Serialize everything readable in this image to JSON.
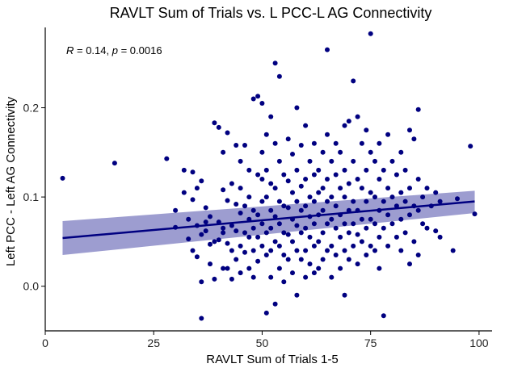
{
  "chart_data": {
    "type": "scatter",
    "title": "RAVLT Sum of Trials vs. L PCC-L AG Connectivity",
    "xlabel": "RAVLT Sum of Trials 1-5",
    "ylabel": "Left PCC - Left AG Connectivity",
    "xlim": [
      0,
      103
    ],
    "ylim": [
      -0.05,
      0.29
    ],
    "x_ticks": [
      0,
      25,
      50,
      75,
      100
    ],
    "x_tick_labels": [
      "0",
      "25",
      "50",
      "75",
      "100"
    ],
    "y_ticks": [
      0.0,
      0.1,
      0.2
    ],
    "y_tick_labels": [
      "0.0",
      "0.1",
      "0.2"
    ],
    "grid": false,
    "annotation": {
      "r_label": "R",
      "r_text": " = 0.14, ",
      "p_label": "p",
      "p_text": " = 0.0016"
    },
    "regression": {
      "x": [
        4,
        99
      ],
      "y": [
        0.054,
        0.095
      ],
      "ci_lower": [
        0.035,
        0.082
      ],
      "ci_upper": [
        0.073,
        0.107
      ]
    },
    "point_color": "#000080",
    "line_color": "#000080",
    "ci_color": "#8c8cc8",
    "points": [
      [
        4,
        0.121
      ],
      [
        16,
        0.138
      ],
      [
        28,
        0.143
      ],
      [
        30,
        0.085
      ],
      [
        30,
        0.066
      ],
      [
        32,
        0.13
      ],
      [
        32,
        0.105
      ],
      [
        33,
        0.075
      ],
      [
        33,
        0.053
      ],
      [
        34,
        0.128
      ],
      [
        34,
        0.097
      ],
      [
        34,
        0.04
      ],
      [
        35,
        0.11
      ],
      [
        35,
        0.068
      ],
      [
        35,
        0.033
      ],
      [
        36,
        0.118
      ],
      [
        36,
        0.058
      ],
      [
        36,
        0.005
      ],
      [
        36,
        -0.036
      ],
      [
        37,
        0.088
      ],
      [
        37,
        0.072
      ],
      [
        37,
        0.062
      ],
      [
        38,
        0.078
      ],
      [
        38,
        0.047
      ],
      [
        38,
        0.025
      ],
      [
        39,
        0.183
      ],
      [
        39,
        0.05
      ],
      [
        39,
        0.008
      ],
      [
        40,
        0.178
      ],
      [
        40,
        0.072
      ],
      [
        40,
        0.052
      ],
      [
        41,
        0.15
      ],
      [
        41,
        0.108
      ],
      [
        41,
        0.065
      ],
      [
        41,
        0.06
      ],
      [
        41,
        0.02
      ],
      [
        42,
        0.172
      ],
      [
        42,
        0.096
      ],
      [
        42,
        0.048
      ],
      [
        42,
        0.02
      ],
      [
        43,
        0.115
      ],
      [
        43,
        0.068
      ],
      [
        43,
        0.04
      ],
      [
        43,
        0.008
      ],
      [
        44,
        0.158
      ],
      [
        44,
        0.092
      ],
      [
        44,
        0.062
      ],
      [
        44,
        0.03
      ],
      [
        45,
        0.14
      ],
      [
        45,
        0.11
      ],
      [
        45,
        0.082
      ],
      [
        45,
        0.045
      ],
      [
        45,
        0.015
      ],
      [
        46,
        0.158
      ],
      [
        46,
        0.09
      ],
      [
        46,
        0.06
      ],
      [
        46,
        0.038
      ],
      [
        47,
        0.13
      ],
      [
        47,
        0.1
      ],
      [
        47,
        0.075
      ],
      [
        47,
        0.055
      ],
      [
        47,
        0.02
      ],
      [
        48,
        0.21
      ],
      [
        48,
        0.085
      ],
      [
        48,
        0.065
      ],
      [
        48,
        0.04
      ],
      [
        48,
        0.01
      ],
      [
        49,
        0.213
      ],
      [
        49,
        0.125
      ],
      [
        49,
        0.08
      ],
      [
        49,
        0.055
      ],
      [
        49,
        0.028
      ],
      [
        50,
        0.205
      ],
      [
        50,
        0.15
      ],
      [
        50,
        0.12
      ],
      [
        50,
        0.095
      ],
      [
        50,
        0.07
      ],
      [
        50,
        0.045
      ],
      [
        51,
        0.17
      ],
      [
        51,
        0.13
      ],
      [
        51,
        0.1
      ],
      [
        51,
        0.06
      ],
      [
        51,
        0.035
      ],
      [
        51,
        -0.03
      ],
      [
        52,
        0.19
      ],
      [
        52,
        0.115
      ],
      [
        52,
        0.085
      ],
      [
        52,
        0.065
      ],
      [
        52,
        0.04
      ],
      [
        52,
        0.01
      ],
      [
        53,
        0.25
      ],
      [
        53,
        0.16
      ],
      [
        53,
        0.11
      ],
      [
        53,
        0.078
      ],
      [
        53,
        0.05
      ],
      [
        53,
        -0.02
      ],
      [
        54,
        0.235
      ],
      [
        54,
        0.14
      ],
      [
        54,
        0.095
      ],
      [
        54,
        0.07
      ],
      [
        54,
        0.045
      ],
      [
        54,
        0.02
      ],
      [
        55,
        0.125
      ],
      [
        55,
        0.09
      ],
      [
        55,
        0.06
      ],
      [
        55,
        0.035
      ],
      [
        55,
        0.005
      ],
      [
        56,
        0.165
      ],
      [
        56,
        0.118
      ],
      [
        56,
        0.088
      ],
      [
        56,
        0.058
      ],
      [
        56,
        0.03
      ],
      [
        57,
        0.148
      ],
      [
        57,
        0.105
      ],
      [
        57,
        0.075
      ],
      [
        57,
        0.05
      ],
      [
        57,
        0.015
      ],
      [
        58,
        0.2
      ],
      [
        58,
        0.13
      ],
      [
        58,
        0.095
      ],
      [
        58,
        0.068
      ],
      [
        58,
        0.04
      ],
      [
        58,
        -0.01
      ],
      [
        59,
        0.158
      ],
      [
        59,
        0.112
      ],
      [
        59,
        0.085
      ],
      [
        59,
        0.06
      ],
      [
        59,
        0.03
      ],
      [
        60,
        0.18
      ],
      [
        60,
        0.12
      ],
      [
        60,
        0.09
      ],
      [
        60,
        0.065
      ],
      [
        60,
        0.04
      ],
      [
        60,
        0.01
      ],
      [
        61,
        0.14
      ],
      [
        61,
        0.1
      ],
      [
        61,
        0.078
      ],
      [
        61,
        0.055
      ],
      [
        61,
        0.025
      ],
      [
        62,
        0.16
      ],
      [
        62,
        0.125
      ],
      [
        62,
        0.095
      ],
      [
        62,
        0.07
      ],
      [
        62,
        0.045
      ],
      [
        62,
        0.015
      ],
      [
        63,
        0.13
      ],
      [
        63,
        0.105
      ],
      [
        63,
        0.08
      ],
      [
        63,
        0.05
      ],
      [
        63,
        0.02
      ],
      [
        64,
        0.15
      ],
      [
        64,
        0.11
      ],
      [
        64,
        0.085
      ],
      [
        64,
        0.06
      ],
      [
        64,
        0.03
      ],
      [
        65,
        0.265
      ],
      [
        65,
        0.17
      ],
      [
        65,
        0.12
      ],
      [
        65,
        0.095
      ],
      [
        65,
        0.07
      ],
      [
        65,
        0.04
      ],
      [
        66,
        0.14
      ],
      [
        66,
        0.1
      ],
      [
        66,
        0.075
      ],
      [
        66,
        0.045
      ],
      [
        66,
        0.01
      ],
      [
        67,
        0.16
      ],
      [
        67,
        0.125
      ],
      [
        67,
        0.09
      ],
      [
        67,
        0.065
      ],
      [
        67,
        0.035
      ],
      [
        68,
        0.15
      ],
      [
        68,
        0.11
      ],
      [
        68,
        0.08
      ],
      [
        68,
        0.055
      ],
      [
        68,
        0.02
      ],
      [
        69,
        0.18
      ],
      [
        69,
        0.13
      ],
      [
        69,
        0.1
      ],
      [
        69,
        0.07
      ],
      [
        69,
        0.04
      ],
      [
        69,
        -0.01
      ],
      [
        70,
        0.185
      ],
      [
        70,
        0.115
      ],
      [
        70,
        0.085
      ],
      [
        70,
        0.06
      ],
      [
        70,
        0.03
      ],
      [
        71,
        0.23
      ],
      [
        71,
        0.14
      ],
      [
        71,
        0.095
      ],
      [
        71,
        0.07
      ],
      [
        71,
        0.045
      ],
      [
        72,
        0.19
      ],
      [
        72,
        0.12
      ],
      [
        72,
        0.085
      ],
      [
        72,
        0.058
      ],
      [
        72,
        0.025
      ],
      [
        73,
        0.16
      ],
      [
        73,
        0.11
      ],
      [
        73,
        0.075
      ],
      [
        73,
        0.05
      ],
      [
        74,
        0.175
      ],
      [
        74,
        0.13
      ],
      [
        74,
        0.095
      ],
      [
        74,
        0.065
      ],
      [
        74,
        0.035
      ],
      [
        75,
        0.283
      ],
      [
        75,
        0.15
      ],
      [
        75,
        0.105
      ],
      [
        75,
        0.075
      ],
      [
        75,
        0.045
      ],
      [
        76,
        0.14
      ],
      [
        76,
        0.1
      ],
      [
        76,
        0.07
      ],
      [
        76,
        0.04
      ],
      [
        77,
        0.16
      ],
      [
        77,
        0.12
      ],
      [
        77,
        0.085
      ],
      [
        77,
        0.055
      ],
      [
        77,
        0.02
      ],
      [
        78,
        0.13
      ],
      [
        78,
        0.095
      ],
      [
        78,
        0.065
      ],
      [
        78,
        -0.033
      ],
      [
        79,
        0.17
      ],
      [
        79,
        0.11
      ],
      [
        79,
        0.08
      ],
      [
        79,
        0.045
      ],
      [
        80,
        0.14
      ],
      [
        80,
        0.1
      ],
      [
        80,
        0.07
      ],
      [
        81,
        0.125
      ],
      [
        81,
        0.09
      ],
      [
        81,
        0.055
      ],
      [
        82,
        0.15
      ],
      [
        82,
        0.105
      ],
      [
        82,
        0.075
      ],
      [
        82,
        0.04
      ],
      [
        83,
        0.13
      ],
      [
        83,
        0.095
      ],
      [
        83,
        0.06
      ],
      [
        84,
        0.175
      ],
      [
        84,
        0.11
      ],
      [
        84,
        0.08
      ],
      [
        84,
        0.025
      ],
      [
        85,
        0.165
      ],
      [
        85,
        0.09
      ],
      [
        85,
        0.05
      ],
      [
        86,
        0.198
      ],
      [
        86,
        0.12
      ],
      [
        86,
        0.085
      ],
      [
        86,
        0.035
      ],
      [
        87,
        0.1
      ],
      [
        87,
        0.07
      ],
      [
        88,
        0.11
      ],
      [
        88,
        0.065
      ],
      [
        89,
        0.09
      ],
      [
        90,
        0.105
      ],
      [
        90,
        0.062
      ],
      [
        91,
        0.095
      ],
      [
        91,
        0.055
      ],
      [
        94,
        0.04
      ],
      [
        95,
        0.098
      ],
      [
        98,
        0.157
      ],
      [
        99,
        0.081
      ]
    ]
  }
}
